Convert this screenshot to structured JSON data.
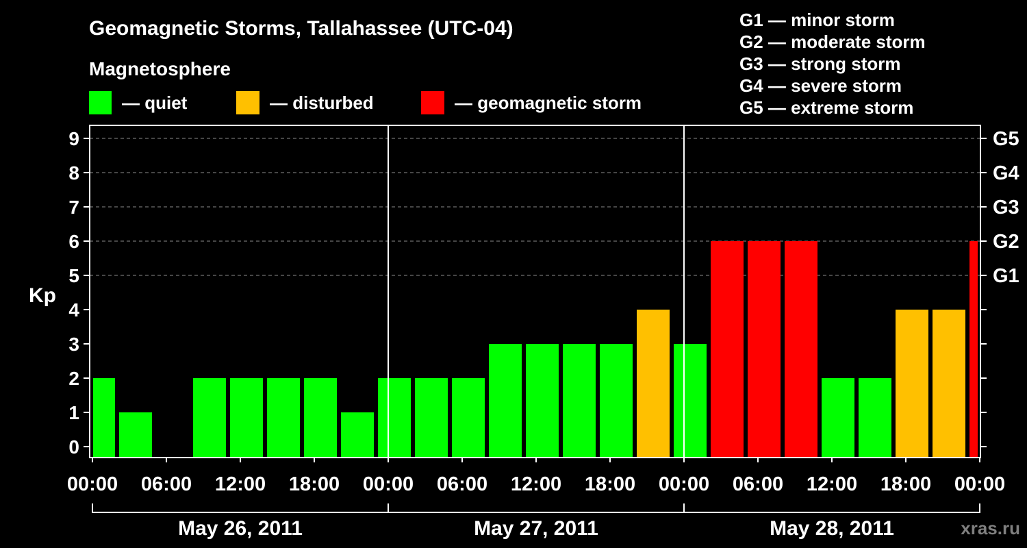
{
  "legend": {
    "heading": "Magnetosphere",
    "items": [
      {
        "label": "— quiet",
        "color": "#00ff00"
      },
      {
        "label": "— disturbed",
        "color": "#ffc000"
      },
      {
        "label": "— geomagnetic storm",
        "color": "#ff0000"
      }
    ]
  },
  "storm_scale": [
    "G1 — minor storm",
    "G2 — moderate storm",
    "G3 — strong storm",
    "G4 — severe storm",
    "G5 — extreme storm"
  ],
  "watermark": "xras.ru",
  "chart_data": {
    "type": "bar",
    "title": "Geomagnetic Storms, Tallahassee (UTC-04)",
    "ylabel": "Kp",
    "ylim": [
      0,
      9
    ],
    "yticks": [
      0,
      1,
      2,
      3,
      4,
      5,
      6,
      7,
      8,
      9
    ],
    "gridlines_kp": [
      5,
      6,
      7,
      8,
      9
    ],
    "right_axis_labels": [
      {
        "kp": 5,
        "label": "G1"
      },
      {
        "kp": 6,
        "label": "G2"
      },
      {
        "kp": 7,
        "label": "G3"
      },
      {
        "kp": 8,
        "label": "G4"
      },
      {
        "kp": 9,
        "label": "G5"
      }
    ],
    "xlim": [
      "2011-05-26 00:00",
      "2011-05-29 00:00"
    ],
    "xtick_labels": [
      "00:00",
      "06:00",
      "12:00",
      "18:00",
      "00:00",
      "06:00",
      "12:00",
      "18:00",
      "00:00",
      "06:00",
      "12:00",
      "18:00",
      "00:00"
    ],
    "day_labels": [
      "May 26, 2011",
      "May 27, 2011",
      "May 28, 2011"
    ],
    "bars": [
      {
        "start": "2011-05-26 00:00",
        "end": "2011-05-26 02:00",
        "kp": 2,
        "color": "#00ff00"
      },
      {
        "start": "2011-05-26 02:00",
        "end": "2011-05-26 05:00",
        "kp": 1,
        "color": "#00ff00"
      },
      {
        "start": "2011-05-26 05:00",
        "end": "2011-05-26 08:00",
        "kp": 0,
        "color": "#00ff00"
      },
      {
        "start": "2011-05-26 08:00",
        "end": "2011-05-26 11:00",
        "kp": 2,
        "color": "#00ff00"
      },
      {
        "start": "2011-05-26 11:00",
        "end": "2011-05-26 14:00",
        "kp": 2,
        "color": "#00ff00"
      },
      {
        "start": "2011-05-26 14:00",
        "end": "2011-05-26 17:00",
        "kp": 2,
        "color": "#00ff00"
      },
      {
        "start": "2011-05-26 17:00",
        "end": "2011-05-26 20:00",
        "kp": 2,
        "color": "#00ff00"
      },
      {
        "start": "2011-05-26 20:00",
        "end": "2011-05-26 23:00",
        "kp": 1,
        "color": "#00ff00"
      },
      {
        "start": "2011-05-26 23:00",
        "end": "2011-05-27 02:00",
        "kp": 2,
        "color": "#00ff00"
      },
      {
        "start": "2011-05-27 02:00",
        "end": "2011-05-27 05:00",
        "kp": 2,
        "color": "#00ff00"
      },
      {
        "start": "2011-05-27 05:00",
        "end": "2011-05-27 08:00",
        "kp": 2,
        "color": "#00ff00"
      },
      {
        "start": "2011-05-27 08:00",
        "end": "2011-05-27 11:00",
        "kp": 3,
        "color": "#00ff00"
      },
      {
        "start": "2011-05-27 11:00",
        "end": "2011-05-27 14:00",
        "kp": 3,
        "color": "#00ff00"
      },
      {
        "start": "2011-05-27 14:00",
        "end": "2011-05-27 17:00",
        "kp": 3,
        "color": "#00ff00"
      },
      {
        "start": "2011-05-27 17:00",
        "end": "2011-05-27 20:00",
        "kp": 3,
        "color": "#00ff00"
      },
      {
        "start": "2011-05-27 20:00",
        "end": "2011-05-27 23:00",
        "kp": 4,
        "color": "#ffc000"
      },
      {
        "start": "2011-05-27 23:00",
        "end": "2011-05-28 02:00",
        "kp": 3,
        "color": "#00ff00"
      },
      {
        "start": "2011-05-28 02:00",
        "end": "2011-05-28 05:00",
        "kp": 6,
        "color": "#ff0000"
      },
      {
        "start": "2011-05-28 05:00",
        "end": "2011-05-28 08:00",
        "kp": 6,
        "color": "#ff0000"
      },
      {
        "start": "2011-05-28 08:00",
        "end": "2011-05-28 11:00",
        "kp": 6,
        "color": "#ff0000"
      },
      {
        "start": "2011-05-28 11:00",
        "end": "2011-05-28 14:00",
        "kp": 2,
        "color": "#00ff00"
      },
      {
        "start": "2011-05-28 14:00",
        "end": "2011-05-28 17:00",
        "kp": 2,
        "color": "#00ff00"
      },
      {
        "start": "2011-05-28 17:00",
        "end": "2011-05-28 20:00",
        "kp": 4,
        "color": "#ffc000"
      },
      {
        "start": "2011-05-28 20:00",
        "end": "2011-05-28 23:00",
        "kp": 4,
        "color": "#ffc000"
      },
      {
        "start": "2011-05-28 23:00",
        "end": "2011-05-29 00:00",
        "kp": 6,
        "color": "#ff0000"
      }
    ]
  }
}
